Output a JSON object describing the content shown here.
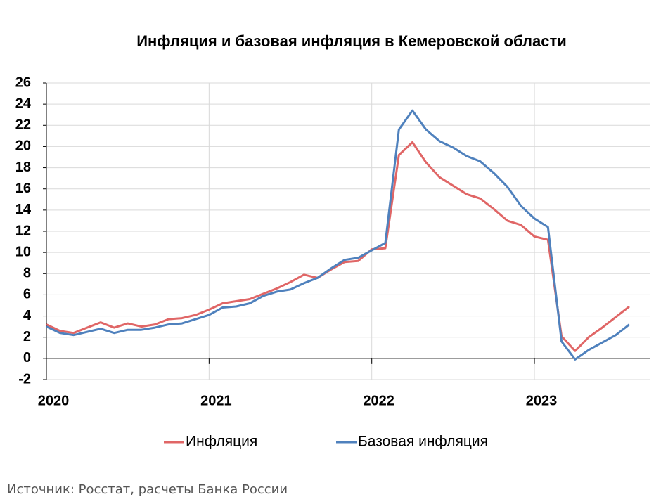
{
  "chart_data": {
    "type": "line",
    "title": "Инфляция и базовая инфляция в Кемеровской области",
    "source": "Источник: Росстат, расчеты Банка России",
    "categories": [
      "2020",
      null,
      null,
      null,
      null,
      null,
      null,
      null,
      null,
      null,
      null,
      null,
      "2021",
      null,
      null,
      null,
      null,
      null,
      null,
      null,
      null,
      null,
      null,
      null,
      "2022",
      null,
      null,
      null,
      null,
      null,
      null,
      null,
      null,
      null,
      null,
      null,
      "2023",
      null,
      null,
      null,
      null,
      null,
      null,
      null
    ],
    "series": [
      {
        "name": "Инфляция",
        "color": "#e06666",
        "values": [
          3.2,
          2.6,
          2.4,
          2.9,
          3.4,
          2.9,
          3.3,
          3.0,
          3.2,
          3.7,
          3.8,
          4.1,
          4.6,
          5.2,
          5.4,
          5.6,
          6.1,
          6.6,
          7.2,
          7.9,
          7.6,
          8.4,
          9.1,
          9.2,
          10.3,
          10.4,
          19.2,
          20.4,
          18.5,
          17.1,
          16.3,
          15.5,
          15.1,
          14.1,
          13.0,
          12.6,
          11.5,
          11.2,
          2.1,
          0.7,
          2.0,
          2.9,
          3.9,
          4.9
        ]
      },
      {
        "name": "Базовая инфляция",
        "color": "#4f81bd",
        "values": [
          3.0,
          2.4,
          2.2,
          2.5,
          2.8,
          2.4,
          2.7,
          2.7,
          2.9,
          3.2,
          3.3,
          3.7,
          4.1,
          4.8,
          4.9,
          5.2,
          5.9,
          6.3,
          6.5,
          7.1,
          7.6,
          8.5,
          9.3,
          9.5,
          10.2,
          10.9,
          21.6,
          23.4,
          21.6,
          20.5,
          19.9,
          19.1,
          18.6,
          17.5,
          16.2,
          14.4,
          13.2,
          12.4,
          1.6,
          -0.1,
          0.8,
          1.5,
          2.2,
          3.2
        ]
      }
    ],
    "ylim": [
      -2,
      26
    ],
    "yticks": [
      -2,
      0,
      2,
      4,
      6,
      8,
      10,
      12,
      14,
      16,
      18,
      20,
      22,
      24,
      26
    ],
    "grid": true,
    "legend": "bottom"
  }
}
